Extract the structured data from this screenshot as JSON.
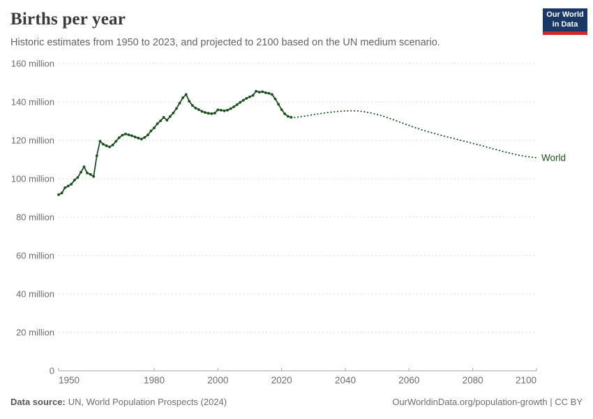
{
  "header": {
    "title": "Births per year",
    "subtitle": "Historic estimates from 1950 to 2023, and projected to 2100 based on the UN medium scenario.",
    "logo": {
      "line1": "Our World",
      "line2": "in Data",
      "bg_color": "#1A3866",
      "accent_color": "#CE2A26"
    }
  },
  "chart_data": {
    "type": "line",
    "title": "Births per year",
    "xlabel": "",
    "ylabel": "",
    "x_range": [
      1950,
      2100
    ],
    "y_range": [
      0,
      160
    ],
    "grid": true,
    "legend_position": "end-of-line",
    "x_ticks": [
      {
        "value": 1950,
        "label": "1950"
      },
      {
        "value": 1980,
        "label": "1980"
      },
      {
        "value": 2000,
        "label": "2000"
      },
      {
        "value": 2020,
        "label": "2020"
      },
      {
        "value": 2040,
        "label": "2040"
      },
      {
        "value": 2060,
        "label": "2060"
      },
      {
        "value": 2080,
        "label": "2080"
      },
      {
        "value": 2100,
        "label": "2100"
      }
    ],
    "y_ticks": [
      {
        "value": 0,
        "label": "0"
      },
      {
        "value": 20,
        "label": "20 million"
      },
      {
        "value": 40,
        "label": "40 million"
      },
      {
        "value": 60,
        "label": "60 million"
      },
      {
        "value": 80,
        "label": "80 million"
      },
      {
        "value": 100,
        "label": "100 million"
      },
      {
        "value": 120,
        "label": "120 million"
      },
      {
        "value": 140,
        "label": "140 million"
      },
      {
        "value": 160,
        "label": "160 million"
      }
    ],
    "series": [
      {
        "name": "World",
        "end_label": "World",
        "color": "#1D4E20",
        "unit": "million births",
        "historical": {
          "style": "solid-with-markers",
          "points": [
            [
              1950,
              91.7
            ],
            [
              1951,
              92.6
            ],
            [
              1952,
              95.3
            ],
            [
              1953,
              96.2
            ],
            [
              1954,
              97.2
            ],
            [
              1955,
              99.3
            ],
            [
              1956,
              100.7
            ],
            [
              1957,
              103.4
            ],
            [
              1958,
              106.2
            ],
            [
              1959,
              103.0
            ],
            [
              1960,
              102.3
            ],
            [
              1961,
              101.2
            ],
            [
              1962,
              112.0
            ],
            [
              1963,
              119.6
            ],
            [
              1964,
              118.0
            ],
            [
              1965,
              117.2
            ],
            [
              1966,
              116.6
            ],
            [
              1967,
              117.6
            ],
            [
              1968,
              119.5
            ],
            [
              1969,
              121.4
            ],
            [
              1970,
              122.7
            ],
            [
              1971,
              123.3
            ],
            [
              1972,
              122.9
            ],
            [
              1973,
              122.4
            ],
            [
              1974,
              121.8
            ],
            [
              1975,
              121.2
            ],
            [
              1976,
              120.7
            ],
            [
              1977,
              121.5
            ],
            [
              1978,
              122.8
            ],
            [
              1979,
              124.9
            ],
            [
              1980,
              126.5
            ],
            [
              1981,
              128.7
            ],
            [
              1982,
              130.2
            ],
            [
              1983,
              132.0
            ],
            [
              1984,
              130.5
            ],
            [
              1985,
              132.4
            ],
            [
              1986,
              134.3
            ],
            [
              1987,
              136.6
            ],
            [
              1988,
              139.4
            ],
            [
              1989,
              142.2
            ],
            [
              1990,
              143.9
            ],
            [
              1991,
              140.4
            ],
            [
              1992,
              138.2
            ],
            [
              1993,
              136.8
            ],
            [
              1994,
              136.0
            ],
            [
              1995,
              135.1
            ],
            [
              1996,
              134.5
            ],
            [
              1997,
              134.1
            ],
            [
              1998,
              133.9
            ],
            [
              1999,
              134.2
            ],
            [
              2000,
              135.9
            ],
            [
              2001,
              135.7
            ],
            [
              2002,
              135.4
            ],
            [
              2003,
              135.7
            ],
            [
              2004,
              136.5
            ],
            [
              2005,
              137.5
            ],
            [
              2006,
              138.6
            ],
            [
              2007,
              139.8
            ],
            [
              2008,
              140.9
            ],
            [
              2009,
              141.9
            ],
            [
              2010,
              142.7
            ],
            [
              2011,
              143.4
            ],
            [
              2012,
              145.6
            ],
            [
              2013,
              145.1
            ],
            [
              2014,
              145.3
            ],
            [
              2015,
              144.8
            ],
            [
              2016,
              144.5
            ],
            [
              2017,
              143.9
            ],
            [
              2018,
              141.6
            ],
            [
              2019,
              138.8
            ],
            [
              2020,
              136.0
            ],
            [
              2021,
              133.8
            ],
            [
              2022,
              132.5
            ],
            [
              2023,
              132.0
            ]
          ]
        },
        "projection": {
          "style": "dotted",
          "points": [
            [
              2023,
              132.0
            ],
            [
              2024,
              131.9
            ],
            [
              2026,
              132.3
            ],
            [
              2028,
              132.8
            ],
            [
              2030,
              133.4
            ],
            [
              2032,
              133.9
            ],
            [
              2034,
              134.4
            ],
            [
              2036,
              134.8
            ],
            [
              2038,
              135.1
            ],
            [
              2040,
              135.3
            ],
            [
              2042,
              135.4
            ],
            [
              2044,
              135.3
            ],
            [
              2046,
              134.9
            ],
            [
              2048,
              134.3
            ],
            [
              2050,
              133.5
            ],
            [
              2052,
              132.5
            ],
            [
              2054,
              131.4
            ],
            [
              2056,
              130.2
            ],
            [
              2058,
              129.0
            ],
            [
              2060,
              127.8
            ],
            [
              2062,
              126.6
            ],
            [
              2064,
              125.5
            ],
            [
              2066,
              124.5
            ],
            [
              2068,
              123.6
            ],
            [
              2070,
              122.7
            ],
            [
              2072,
              121.8
            ],
            [
              2074,
              121.0
            ],
            [
              2076,
              120.1
            ],
            [
              2078,
              119.3
            ],
            [
              2080,
              118.4
            ],
            [
              2082,
              117.6
            ],
            [
              2084,
              116.7
            ],
            [
              2086,
              115.8
            ],
            [
              2088,
              114.9
            ],
            [
              2090,
              114.0
            ],
            [
              2092,
              113.2
            ],
            [
              2094,
              112.4
            ],
            [
              2096,
              111.8
            ],
            [
              2098,
              111.3
            ],
            [
              2100,
              111.0
            ]
          ]
        }
      }
    ]
  },
  "footer": {
    "source_label": "Data source:",
    "source_value": "UN, World Population Prospects (2024)",
    "link_text": "OurWorldinData.org/population-growth",
    "license_suffix": " | CC BY"
  }
}
